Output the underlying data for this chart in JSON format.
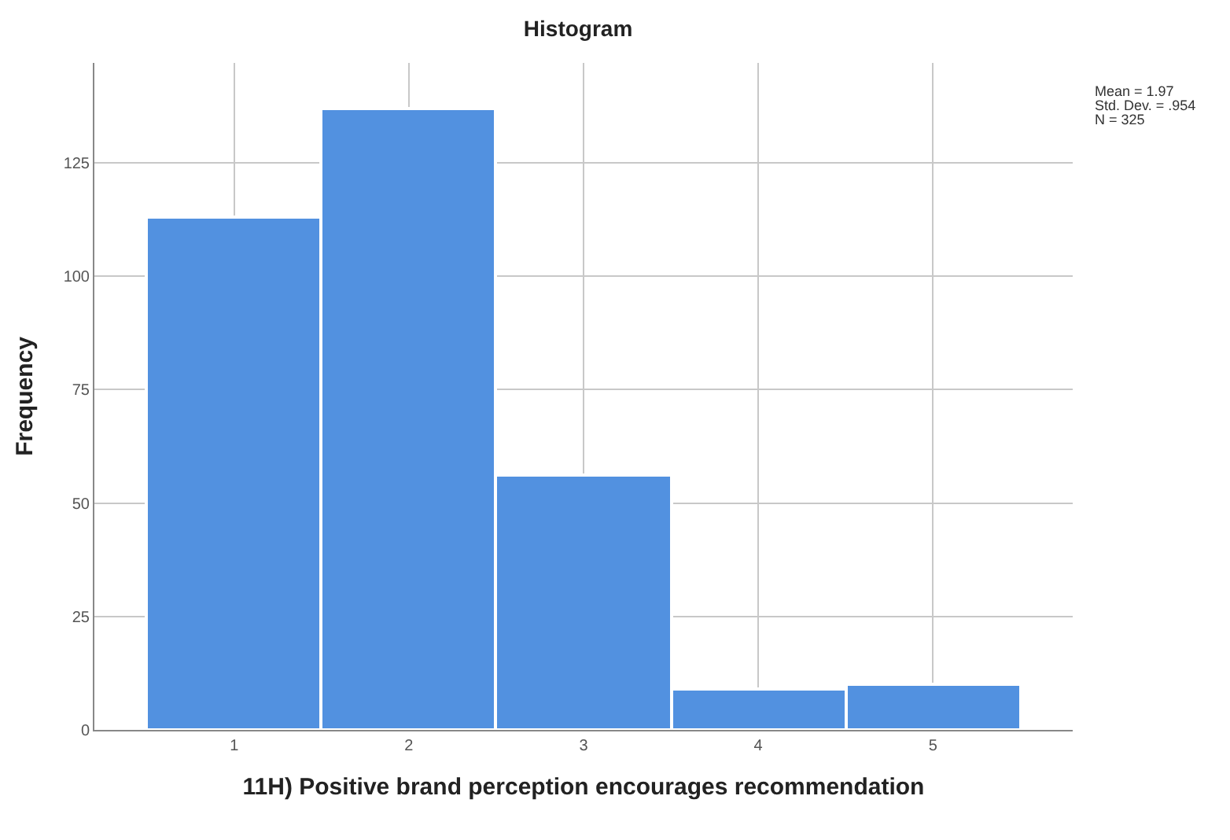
{
  "chart_data": {
    "type": "histogram",
    "title": "Histogram",
    "xlabel": "11H) Positive brand perception encourages recommendation",
    "ylabel": "Frequency",
    "bins": [
      0.5,
      1.5,
      2.5,
      3.5,
      4.5,
      5.5
    ],
    "values": [
      113,
      137,
      56,
      9,
      10
    ],
    "color": "#5291e0",
    "xlim": [
      0.2,
      5.8
    ],
    "xticks": [
      1,
      2,
      3,
      4,
      5
    ],
    "ylim": [
      0,
      147
    ],
    "yticks": [
      0,
      25,
      50,
      75,
      100,
      125
    ],
    "grid": true,
    "annotations": [
      "Mean = 1.97",
      "Std. Dev. = .954",
      "N = 325"
    ]
  }
}
